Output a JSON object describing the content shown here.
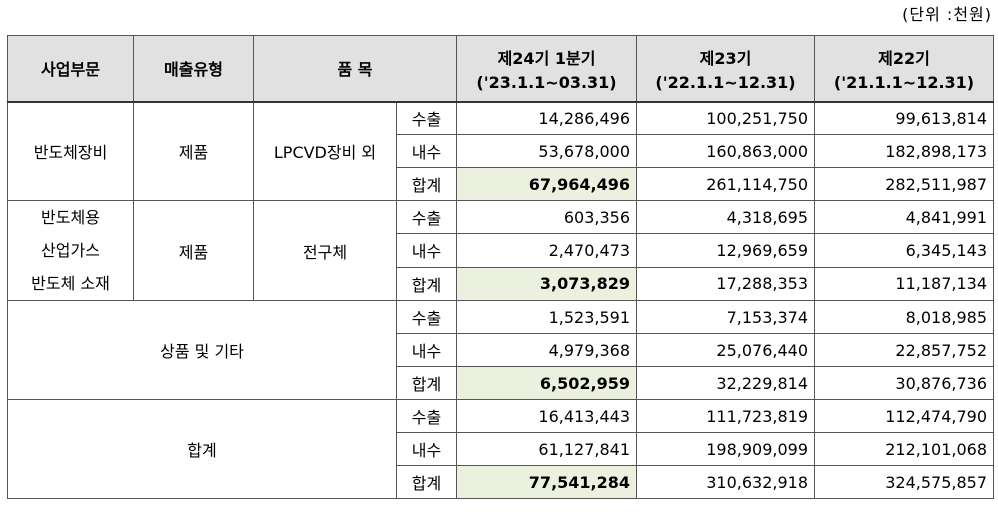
{
  "unit_label": "(단위 :천원)",
  "headers": {
    "segment": "사업부문",
    "sales_type": "매출유형",
    "item": "품 목",
    "periods": [
      {
        "name": "제24기 1분기",
        "range": "('23.1.1~03.31)"
      },
      {
        "name": "제23기",
        "range": "('22.1.1~12.31)"
      },
      {
        "name": "제22기",
        "range": "('21.1.1~12.31)"
      }
    ]
  },
  "groups": [
    {
      "segment_lines": [
        "반도체장비"
      ],
      "sales_type": "제품",
      "item": "LPCVD장비 외",
      "rows": [
        {
          "label": "수출",
          "values": [
            "14,286,496",
            "100,251,750",
            "99,613,814"
          ]
        },
        {
          "label": "내수",
          "values": [
            "53,678,000",
            "160,863,000",
            "182,898,173"
          ]
        },
        {
          "label": "합계",
          "values": [
            "67,964,496",
            "261,114,750",
            "282,511,987"
          ]
        }
      ]
    },
    {
      "segment_lines": [
        "반도체용",
        "산업가스",
        "반도체 소재"
      ],
      "sales_type": "제품",
      "item": "전구체",
      "rows": [
        {
          "label": "수출",
          "values": [
            "603,356",
            "4,318,695",
            "4,841,991"
          ]
        },
        {
          "label": "내수",
          "values": [
            "2,470,473",
            "12,969,659",
            "6,345,143"
          ]
        },
        {
          "label": "합계",
          "values": [
            "3,073,829",
            "17,288,353",
            "11,187,134"
          ]
        }
      ]
    },
    {
      "segment_lines": [
        "상품 및 기타"
      ],
      "rows": [
        {
          "label": "수출",
          "values": [
            "1,523,591",
            "7,153,374",
            "8,018,985"
          ]
        },
        {
          "label": "내수",
          "values": [
            "4,979,368",
            "25,076,440",
            "22,857,752"
          ]
        },
        {
          "label": "합계",
          "values": [
            "6,502,959",
            "32,229,814",
            "30,876,736"
          ]
        }
      ]
    },
    {
      "segment_lines": [
        "합계"
      ],
      "rows": [
        {
          "label": "수출",
          "values": [
            "16,413,443",
            "111,723,819",
            "112,474,790"
          ]
        },
        {
          "label": "내수",
          "values": [
            "61,127,841",
            "198,909,099",
            "212,101,068"
          ]
        },
        {
          "label": "합계",
          "values": [
            "77,541,284",
            "310,632,918",
            "324,575,857"
          ]
        }
      ]
    }
  ],
  "colors": {
    "header_bg": "#e1e1e1",
    "highlight_bg": "#ebf1de",
    "border": "#555555"
  }
}
